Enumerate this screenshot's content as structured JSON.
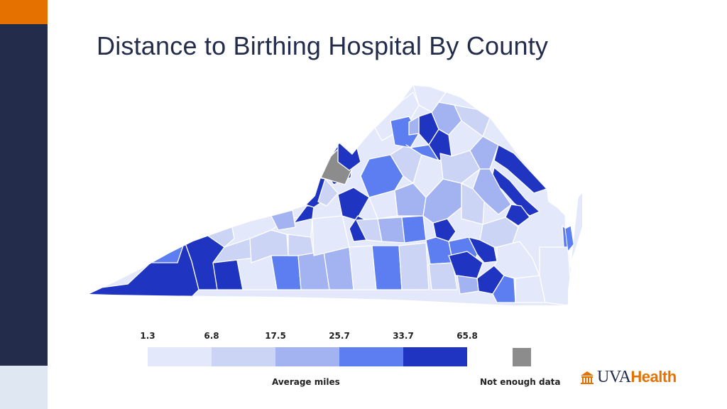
{
  "slide": {
    "title": "Distance to Birthing Hospital By County"
  },
  "legend": {
    "break_labels": [
      "1.3",
      "6.8",
      "17.5",
      "25.7",
      "33.7",
      "65.8"
    ],
    "colors": [
      "#e3e9fa",
      "#ccd4f6",
      "#a3b2f0",
      "#5c7ef0",
      "#1f35c2"
    ],
    "caption": "Average miles",
    "no_data_caption": "Not enough data",
    "no_data_color": "#8c8c8c"
  },
  "map": {
    "region": "Virginia counties",
    "color_classes": [
      "#e3e9fa",
      "#ccd4f6",
      "#a3b2f0",
      "#5c7ef0",
      "#1f35c2",
      "#8c8c8c"
    ]
  },
  "logo": {
    "part1": "UVA",
    "part2": "Health",
    "icon": "rotunda-icon"
  },
  "theme": {
    "navy": "#232d4b",
    "orange": "#e57200"
  }
}
